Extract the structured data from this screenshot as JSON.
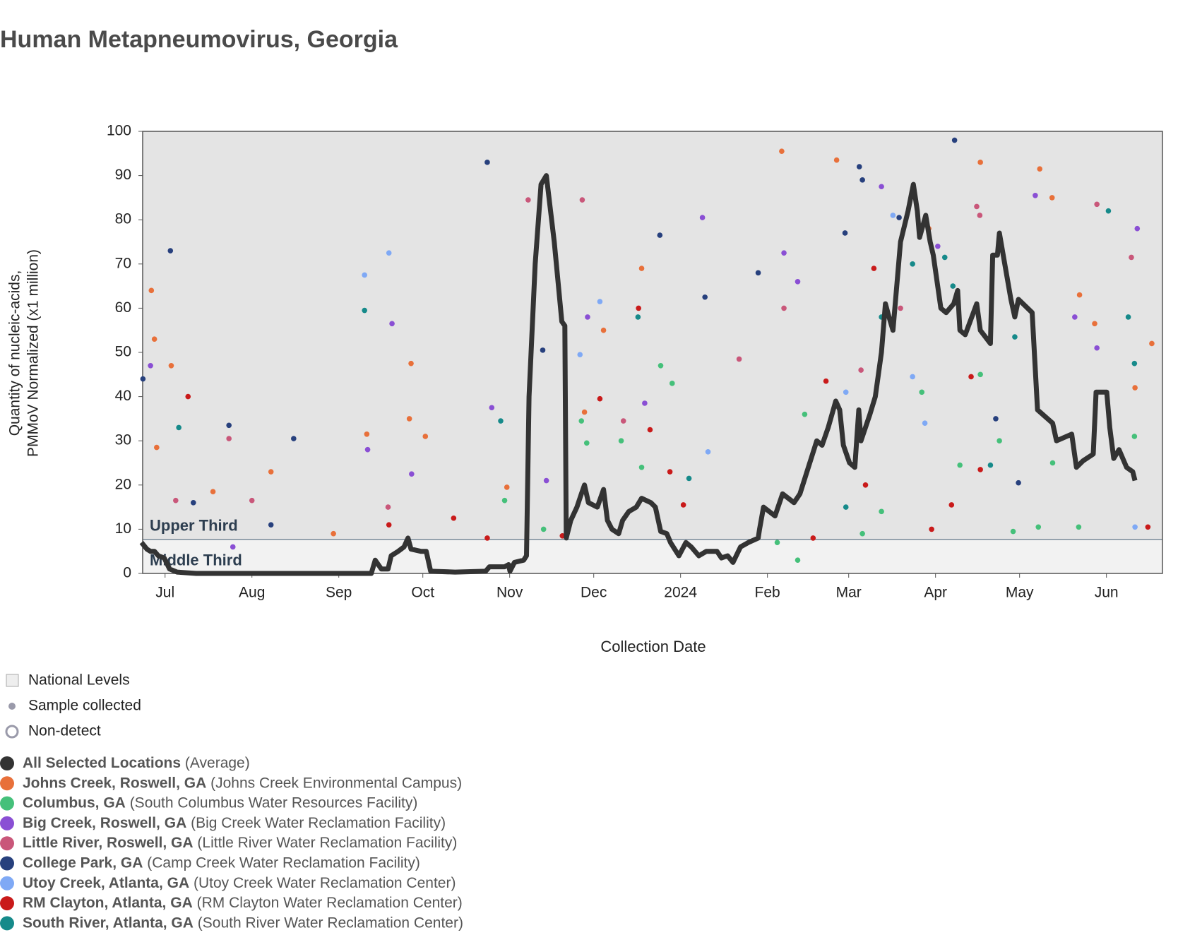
{
  "chart_data": {
    "type": "line",
    "title": "Human Metapneumovirus, Georgia",
    "x_label": "Collection Date",
    "y_label": [
      "Quantity of nucleic-acids,",
      "PMMoV Normalized (x1 million)"
    ],
    "xlim": [
      -8,
      356
    ],
    "xticks": [
      {
        "value": 0,
        "label": "Jul"
      },
      {
        "value": 31,
        "label": "Aug"
      },
      {
        "value": 62,
        "label": "Sep"
      },
      {
        "value": 92,
        "label": "Oct"
      },
      {
        "value": 123,
        "label": "Nov"
      },
      {
        "value": 153,
        "label": "Dec"
      },
      {
        "value": 184,
        "label": "2024"
      },
      {
        "value": 215,
        "label": "Feb"
      },
      {
        "value": 244,
        "label": "Mar"
      },
      {
        "value": 275,
        "label": "Apr"
      },
      {
        "value": 305,
        "label": "May"
      },
      {
        "value": 336,
        "label": "Jun"
      }
    ],
    "ylim": [
      0,
      100
    ],
    "yticks": [
      0,
      10,
      20,
      30,
      40,
      50,
      60,
      70,
      80,
      90,
      100
    ],
    "national_levels": [
      {
        "label": "Upper Third",
        "from": 7.7,
        "to": 100,
        "color": "#e4e4e4"
      },
      {
        "label": "Middle Third",
        "from": 0,
        "to": 7.7,
        "color": "#f2f2f2"
      }
    ],
    "legend_items": [
      "National Levels",
      "Sample collected",
      "Non-detect"
    ],
    "series": [
      {
        "name": "All Selected Locations",
        "facility": "(Average)",
        "color": "#333333",
        "type": "line",
        "x": [
          -8.4,
          -6.5,
          -5.2,
          -3.8,
          -2.4,
          -0.3,
          1.6,
          4.3,
          11.1,
          73.6,
          75,
          77.2,
          79.6,
          80.7,
          83.2,
          85.3,
          86.7,
          87.8,
          91.3,
          93.2,
          94.8,
          103.5,
          114.4,
          115.8,
          121.2,
          122.6,
          123.1,
          124.7,
          128,
          129,
          129.9,
          132.1,
          134.2,
          136.1,
          138.9,
          141.6,
          142.7,
          143.2,
          144.8,
          147,
          148.6,
          149.7,
          151.1,
          154.3,
          156.5,
          157.9,
          159.5,
          161.9,
          163.3,
          165.5,
          168.2,
          170.1,
          173.4,
          175,
          176.9,
          179.1,
          180.4,
          183.4,
          185.9,
          187.8,
          190.5,
          193.2,
          197,
          198.6,
          200.8,
          202.7,
          205.4,
          208.2,
          211.7,
          212.2,
          213.6,
          217.7,
          220.4,
          224.5,
          226.6,
          232.6,
          234.5,
          236.7,
          239.4,
          240.8,
          242.1,
          244.3,
          246.2,
          247.6,
          248.4,
          251.6,
          253.5,
          255.7,
          257.1,
          258.4,
          259.8,
          262.5,
          265.2,
          267.1,
          268.5,
          269.3,
          271.5,
          273.1,
          274.2,
          276.9,
          278.8,
          281.5,
          282.9,
          283.7,
          285.6,
          289.7,
          291,
          294.6,
          295.4,
          297.1,
          297.8,
          299.7,
          301.9,
          303.3,
          304.6,
          309.5,
          311.4,
          316.8,
          318.2,
          323.6,
          325.3,
          327.7,
          331.3,
          332.3,
          336.1,
          337.2,
          338.6,
          340.5,
          343.2,
          345.4,
          346.2
        ],
        "values": [
          7,
          5.5,
          5,
          5,
          4,
          3.5,
          1,
          0.3,
          0,
          0,
          3,
          1,
          1,
          4,
          5,
          6,
          8,
          5.5,
          5,
          5,
          0.5,
          0.3,
          0.5,
          1.5,
          1.5,
          2,
          0.5,
          2.5,
          3,
          4,
          40,
          70,
          88,
          90,
          75,
          57,
          56,
          8,
          12,
          15,
          18,
          20,
          16,
          15,
          19,
          12,
          10,
          9,
          12,
          14,
          15,
          17,
          16,
          15,
          9.5,
          9,
          7,
          4,
          7,
          6,
          4,
          5,
          5,
          3.5,
          4,
          2.5,
          6,
          7,
          8,
          10,
          15,
          13,
          18,
          16,
          18,
          30,
          29,
          33,
          39,
          37,
          29,
          25,
          24,
          37,
          30,
          36,
          40,
          50,
          61,
          58,
          55,
          75,
          82,
          88,
          82,
          76,
          81,
          75,
          72,
          60,
          59,
          61,
          64,
          55,
          54,
          61,
          55,
          52,
          72,
          72,
          77,
          70,
          62,
          58,
          62,
          59,
          37,
          34,
          30,
          31.5,
          24,
          25.5,
          27,
          41,
          41,
          33,
          26,
          28,
          24,
          23,
          21
        ]
      },
      {
        "name": "Johns Creek, Roswell, GA",
        "facility": "(Johns Creek Environmental Campus)",
        "color": "#e8703a",
        "type": "scatter",
        "x": [
          -4.9,
          -3.8,
          -3,
          2.2,
          17.1,
          37.8,
          60.1,
          72,
          87.8,
          87.2,
          92.9,
          122,
          149.7,
          156.5,
          170.1,
          220.1,
          239.7,
          291,
          312.2,
          316.6,
          272.6,
          326.4,
          331.8,
          346.2,
          352.2
        ],
        "values": [
          64,
          53,
          28.5,
          47,
          18.5,
          23,
          9,
          31.5,
          47.5,
          35,
          31,
          19.5,
          36.5,
          55,
          69,
          95.5,
          93.5,
          93,
          91.5,
          85,
          78,
          63,
          56.5,
          42,
          52
        ]
      },
      {
        "name": "Columbus, GA",
        "facility": "(South Columbus Water Resources Facility)",
        "color": "#45c07a",
        "type": "scatter",
        "x": [
          121.2,
          135.1,
          148.6,
          150.5,
          162.8,
          170.1,
          176.9,
          181,
          218.5,
          225.8,
          228.3,
          248.9,
          255.7,
          270.1,
          283.7,
          291,
          297.8,
          302.7,
          311.7,
          316.8,
          326.1,
          346
        ],
        "values": [
          16.5,
          10,
          34.5,
          29.5,
          30,
          24,
          47,
          43,
          7,
          3,
          36,
          9,
          14,
          41,
          24.5,
          45,
          30,
          9.5,
          10.5,
          25,
          10.5,
          31
        ]
      },
      {
        "name": "Big Creek, Roswell, GA",
        "facility": "(Big Creek Water Reclamation Facility)",
        "color": "#8a4fd4",
        "type": "scatter",
        "x": [
          -5.2,
          24.2,
          72.3,
          81,
          88,
          116.6,
          136.1,
          150.8,
          171.2,
          191.8,
          220.9,
          225.8,
          255.7,
          275.8,
          310.6,
          324.7,
          332.6,
          347
        ],
        "values": [
          47,
          6,
          28,
          56.5,
          22.5,
          37.5,
          21,
          58,
          38.5,
          80.5,
          72.5,
          66,
          87.5,
          74,
          85.5,
          58,
          51,
          78
        ]
      },
      {
        "name": "Little River, Roswell, GA",
        "facility": "(Little River Water Reclamation Facility)",
        "color": "#c9577a",
        "type": "scatter",
        "x": [
          3.8,
          22.8,
          31,
          79.6,
          129.6,
          148.9,
          163.6,
          204.9,
          220.9,
          248.4,
          262.5,
          289.7,
          290.8,
          332.6,
          344.9
        ],
        "values": [
          16.5,
          30.5,
          16.5,
          15,
          84.5,
          84.5,
          34.5,
          48.5,
          60,
          46,
          60,
          83,
          81,
          83.5,
          71.5
        ]
      },
      {
        "name": "College Park, GA",
        "facility": "(Camp Creek Water Reclamation Facility)",
        "color": "#27407d",
        "type": "scatter",
        "x": [
          -7.9,
          1.9,
          10.1,
          22.8,
          45.9,
          37.8,
          115,
          134.8,
          176.6,
          192.7,
          211.7,
          242.7,
          247.8,
          248.9,
          262,
          281.8,
          296.5,
          304.6
        ],
        "values": [
          44,
          73,
          16,
          33.5,
          30.5,
          11,
          93,
          50.5,
          76.5,
          62.5,
          68,
          77,
          92,
          89,
          80.5,
          98,
          35,
          20.5
        ]
      },
      {
        "name": "Utoy Creek, Atlanta, GA",
        "facility": "(Utoy Creek Water Reclamation Center)",
        "color": "#7fa9f5",
        "type": "scatter",
        "x": [
          71.2,
          79.9,
          148.1,
          155.2,
          193.8,
          243,
          259.8,
          266.8,
          271.2,
          346.2
        ],
        "values": [
          67.5,
          72.5,
          49.5,
          61.5,
          27.5,
          41,
          81,
          44.5,
          34,
          10.5
        ]
      },
      {
        "name": "RM Clayton, Atlanta, GA",
        "facility": "(RM Clayton Water Reclamation Center)",
        "color": "#c91a1a",
        "type": "scatter",
        "x": [
          8.2,
          79.9,
          103,
          115,
          141.8,
          155.2,
          169,
          173.1,
          180.2,
          185,
          231.3,
          235.9,
          250,
          253,
          273.6,
          280.7,
          287.7,
          291,
          350.8
        ],
        "values": [
          40,
          11,
          12.5,
          8,
          8.5,
          39.5,
          60,
          32.5,
          23,
          15.5,
          8,
          43.5,
          20,
          69,
          10,
          15.5,
          44.5,
          23.5,
          10.5
        ]
      },
      {
        "name": "South River, Atlanta, GA",
        "facility": "(South River Water Reclamation Center)",
        "color": "#168a8a",
        "type": "scatter",
        "x": [
          4.9,
          71.2,
          119.8,
          168.8,
          187,
          243,
          255.7,
          266.8,
          278.3,
          281.2,
          294.6,
          303.3,
          336.7,
          343.8,
          346
        ],
        "values": [
          33,
          59.5,
          34.5,
          58,
          21.5,
          15,
          58,
          70,
          71.5,
          65,
          24.5,
          53.5,
          82,
          58,
          47.5
        ]
      }
    ]
  }
}
